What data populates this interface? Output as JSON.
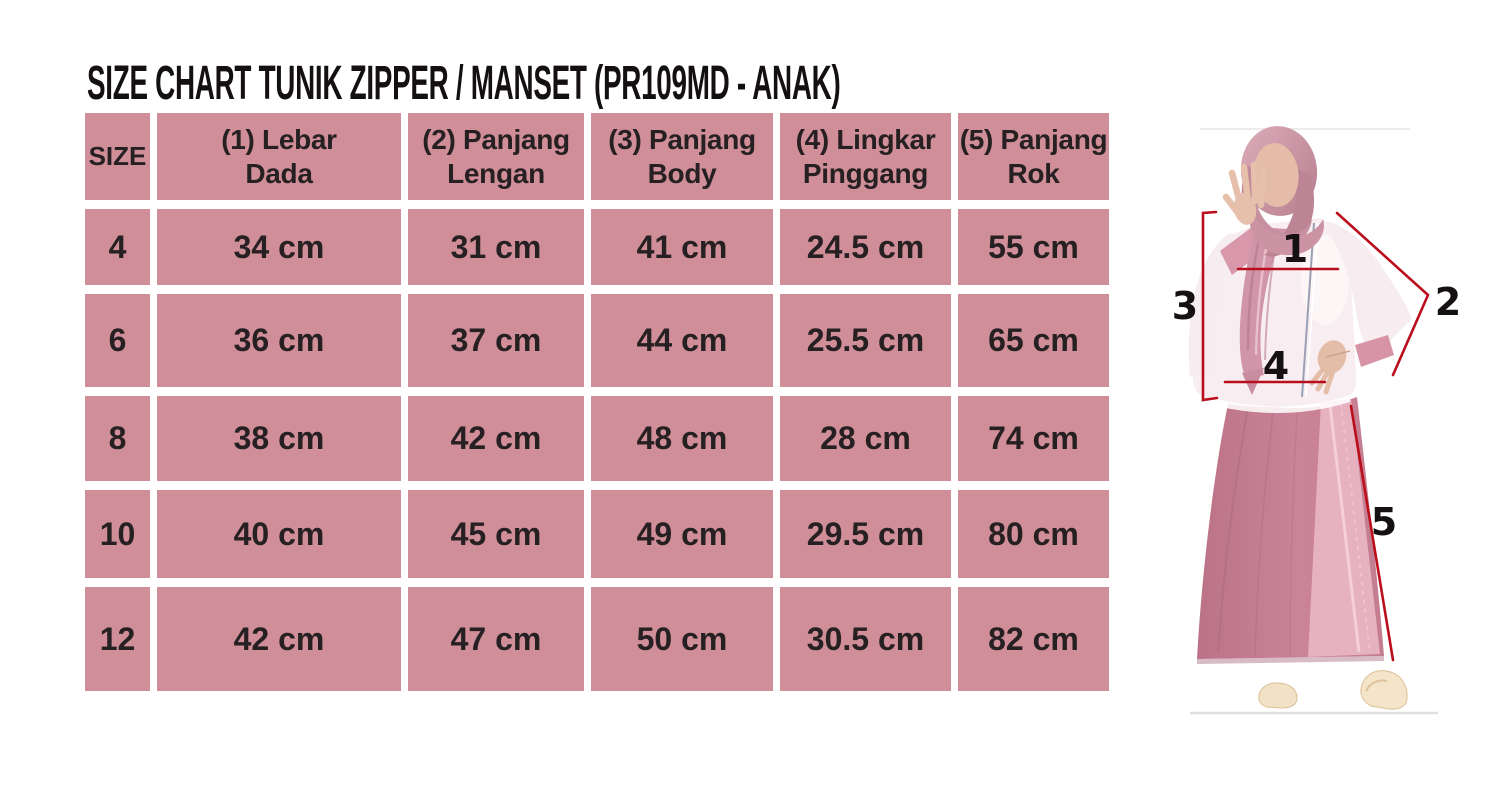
{
  "page": {
    "title": "SIZE CHART TUNIK ZIPPER / MANSET (PR109MD - ANAK)"
  },
  "colors": {
    "cell_pink": "#cf8e98",
    "gap_white": "#ffffff",
    "text_dark": "#262022",
    "annotation_red": "#bb0e1c",
    "skirt_pink": "#c57f92",
    "hijab_pink": "#c795a4"
  },
  "size_table": {
    "columns": [
      {
        "id": "size",
        "label": "SIZE"
      },
      {
        "id": "lebar-dada",
        "label": "(1) Lebar\nDada"
      },
      {
        "id": "panjang-lengan",
        "label": "(2) Panjang\nLengan"
      },
      {
        "id": "panjang-body",
        "label": "(3) Panjang\nBody"
      },
      {
        "id": "lingkar-pinggang",
        "label": "(4) Lingkar\nPinggang"
      },
      {
        "id": "panjang-rok",
        "label": "(5) Panjang\nRok"
      }
    ],
    "rows": [
      {
        "size": "4",
        "cells": [
          "34 cm",
          "31 cm",
          "41 cm",
          "24.5 cm",
          "55 cm"
        ]
      },
      {
        "size": "6",
        "cells": [
          "36 cm",
          "37 cm",
          "44 cm",
          "25.5 cm",
          "65 cm"
        ]
      },
      {
        "size": "8",
        "cells": [
          "38 cm",
          "42 cm",
          "48 cm",
          "28 cm",
          "74 cm"
        ]
      },
      {
        "size": "10",
        "cells": [
          "40 cm",
          "45 cm",
          "49 cm",
          "29.5 cm",
          "80 cm"
        ]
      },
      {
        "size": "12",
        "cells": [
          "42 cm",
          "47 cm",
          "50 cm",
          "30.5 cm",
          "82 cm"
        ]
      }
    ]
  },
  "figure": {
    "labels": [
      "1",
      "2",
      "3",
      "4",
      "5"
    ]
  },
  "chart_data": {
    "type": "table",
    "title": "SIZE CHART TUNIK ZIPPER / MANSET (PR109MD - ANAK)",
    "columns": [
      "SIZE",
      "(1) Lebar Dada",
      "(2) Panjang Lengan",
      "(3) Panjang Body",
      "(4) Lingkar Pinggang",
      "(5) Panjang Rok"
    ],
    "rows": [
      [
        "4",
        "34 cm",
        "31 cm",
        "41 cm",
        "24.5 cm",
        "55 cm"
      ],
      [
        "6",
        "36 cm",
        "37 cm",
        "44 cm",
        "25.5 cm",
        "65 cm"
      ],
      [
        "8",
        "38 cm",
        "42 cm",
        "48 cm",
        "28 cm",
        "74 cm"
      ],
      [
        "10",
        "40 cm",
        "45 cm",
        "49 cm",
        "29.5 cm",
        "80 cm"
      ],
      [
        "12",
        "42 cm",
        "47 cm",
        "50 cm",
        "30.5 cm",
        "82 cm"
      ]
    ]
  }
}
